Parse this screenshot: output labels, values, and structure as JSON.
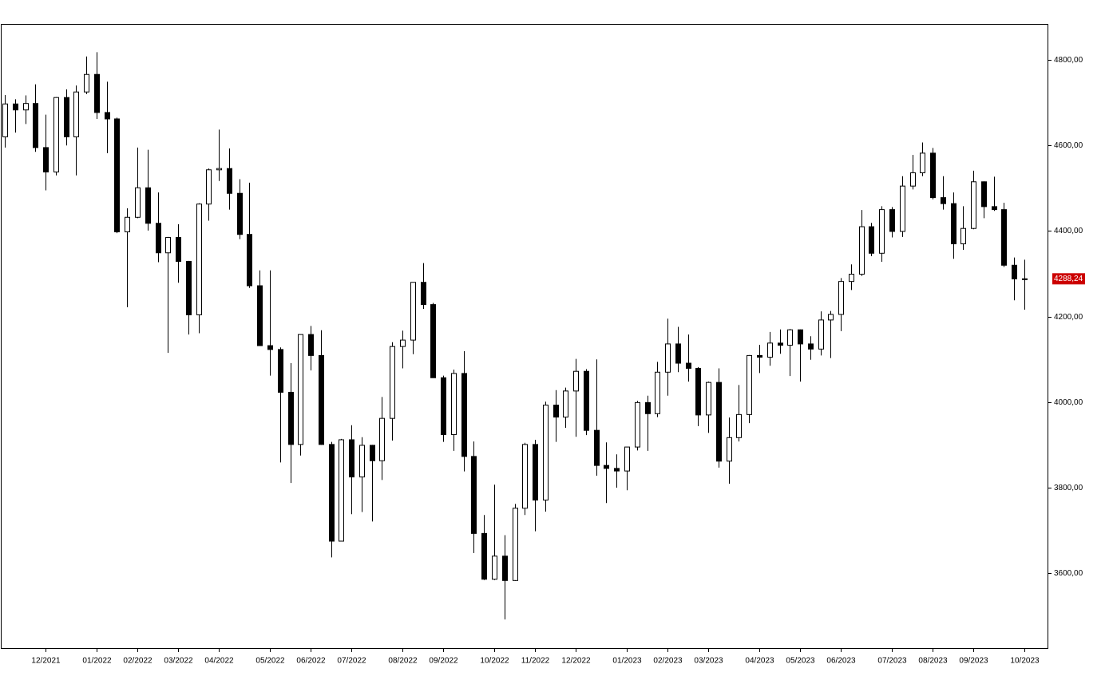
{
  "chart_data": {
    "type": "candlestick",
    "categories": [
      null,
      null,
      null,
      null,
      "12/2021",
      null,
      null,
      null,
      null,
      "01/2022",
      null,
      null,
      null,
      "02/2022",
      null,
      null,
      null,
      "03/2022",
      null,
      null,
      null,
      "04/2022",
      null,
      null,
      null,
      null,
      "05/2022",
      null,
      null,
      null,
      "06/2022",
      null,
      null,
      null,
      "07/2022",
      null,
      null,
      null,
      null,
      "08/2022",
      null,
      null,
      null,
      "09/2022",
      null,
      null,
      null,
      null,
      "10/2022",
      null,
      null,
      null,
      "11/2022",
      null,
      null,
      null,
      "12/2022",
      null,
      null,
      null,
      null,
      "01/2023",
      null,
      null,
      null,
      "02/2023",
      null,
      null,
      null,
      "03/2023",
      null,
      null,
      null,
      null,
      "04/2023",
      null,
      null,
      null,
      "05/2023",
      null,
      null,
      null,
      "06/2023",
      null,
      null,
      null,
      null,
      "07/2023",
      null,
      null,
      null,
      "08/2023",
      null,
      null,
      null,
      "09/2023",
      null,
      null,
      null,
      null,
      "10/2023"
    ],
    "open": [
      4620,
      4697,
      4683,
      4698,
      4595,
      4538,
      4712,
      4620,
      4725,
      4766,
      4677,
      4662,
      4398,
      4432,
      4501,
      4418,
      4349,
      4385,
      4329,
      4204,
      4463,
      4543,
      4546,
      4488,
      4392,
      4272,
      4132,
      4123,
      4023,
      3901,
      4158,
      4109,
      3901,
      3675,
      3912,
      3825,
      3899,
      3863,
      3962,
      4130,
      4145,
      4280,
      4228,
      4057,
      3924,
      4067,
      3873,
      3693,
      3586,
      3640,
      3583,
      3752,
      3901,
      3771,
      3993,
      3965,
      4026,
      4072,
      3934,
      3852,
      3845,
      3839,
      3895,
      3999,
      3973,
      4070,
      4136,
      4091,
      4079,
      3970,
      4046,
      3862,
      3917,
      3971,
      4109,
      4105,
      4138,
      4133,
      4169,
      4136,
      4124,
      4192,
      4205,
      4282,
      4299,
      4410,
      4348,
      4450,
      4399,
      4505,
      4536,
      4582,
      4478,
      4464,
      4370,
      4406,
      4515,
      4457,
      4450,
      4320,
      4288
    ],
    "high": [
      4718,
      4708,
      4717,
      4743,
      4672,
      4713,
      4731,
      4740,
      4808,
      4818,
      4749,
      4665,
      4453,
      4595,
      4590,
      4490,
      4386,
      4416,
      4330,
      4465,
      4546,
      4637,
      4593,
      4521,
      4513,
      4308,
      4308,
      4128,
      4091,
      4158,
      4178,
      4168,
      3907,
      3914,
      3946,
      3918,
      3900,
      4012,
      4140,
      4167,
      4280,
      4325,
      4232,
      4062,
      4076,
      4119,
      3908,
      3736,
      3807,
      3689,
      3762,
      3905,
      3912,
      4001,
      4028,
      4034,
      4101,
      4077,
      4100,
      3906,
      3878,
      3895,
      4003,
      4015,
      4094,
      4195,
      4176,
      4158,
      4082,
      4048,
      4079,
      3964,
      4040,
      4110,
      4134,
      4164,
      4170,
      4171,
      4170,
      4154,
      4212,
      4213,
      4290,
      4322,
      4449,
      4419,
      4458,
      4456,
      4528,
      4578,
      4607,
      4594,
      4528,
      4490,
      4458,
      4541,
      4516,
      4527,
      4466,
      4338,
      4333
    ],
    "low": [
      4595,
      4630,
      4650,
      4585,
      4495,
      4530,
      4600,
      4530,
      4720,
      4662,
      4582,
      4395,
      4222,
      4430,
      4401,
      4327,
      4115,
      4279,
      4158,
      4161,
      4424,
      4517,
      4450,
      4381,
      4267,
      4132,
      4062,
      3859,
      3811,
      3875,
      4074,
      3900,
      3637,
      3675,
      3738,
      3743,
      3721,
      3818,
      3910,
      4079,
      4112,
      4218,
      4057,
      3907,
      3886,
      3838,
      3647,
      3584,
      3584,
      3492,
      3582,
      3736,
      3698,
      3744,
      3907,
      3940,
      3919,
      3923,
      3828,
      3764,
      3800,
      3794,
      3887,
      3886,
      3965,
      4015,
      4070,
      4048,
      3944,
      3928,
      3847,
      3809,
      3908,
      3951,
      4068,
      4085,
      4113,
      4061,
      4048,
      4099,
      4109,
      4103,
      4166,
      4262,
      4295,
      4341,
      4328,
      4385,
      4386,
      4497,
      4528,
      4474,
      4450,
      4335,
      4356,
      4404,
      4430,
      4447,
      4316,
      4238,
      4216
    ],
    "close": [
      4697,
      4683,
      4698,
      4595,
      4538,
      4712,
      4620,
      4725,
      4766,
      4677,
      4662,
      4398,
      4432,
      4501,
      4418,
      4349,
      4385,
      4329,
      4204,
      4463,
      4543,
      4546,
      4488,
      4392,
      4272,
      4132,
      4123,
      4023,
      3901,
      4158,
      4109,
      3901,
      3675,
      3912,
      3825,
      3899,
      3863,
      3962,
      4130,
      4145,
      4280,
      4228,
      4057,
      3924,
      4067,
      3873,
      3693,
      3586,
      3640,
      3583,
      3752,
      3901,
      3771,
      3993,
      3965,
      4026,
      4072,
      3934,
      3852,
      3845,
      3839,
      3895,
      3999,
      3973,
      4070,
      4136,
      4091,
      4079,
      3970,
      4046,
      3862,
      3917,
      3971,
      4109,
      4105,
      4138,
      4133,
      4169,
      4136,
      4124,
      4192,
      4205,
      4282,
      4299,
      4410,
      4348,
      4450,
      4399,
      4505,
      4536,
      4582,
      4478,
      4464,
      4370,
      4406,
      4515,
      4457,
      4450,
      4320,
      4288,
      4288.24
    ],
    "last_value_label": "4288,24",
    "up_color": "#ffffff",
    "down_color": "#000000",
    "line_color": "#000000",
    "marker_color": "#cc0000",
    "ylim": [
      3425,
      4884
    ],
    "yticks": [
      {
        "value": 3600,
        "label": "3600,00"
      },
      {
        "value": 3800,
        "label": "3800,00"
      },
      {
        "value": 4000,
        "label": "4000,00"
      },
      {
        "value": 4200,
        "label": "4200,00"
      },
      {
        "value": 4400,
        "label": "4400,00"
      },
      {
        "value": 4600,
        "label": "4600,00"
      },
      {
        "value": 4800,
        "label": "4800,00"
      }
    ]
  }
}
